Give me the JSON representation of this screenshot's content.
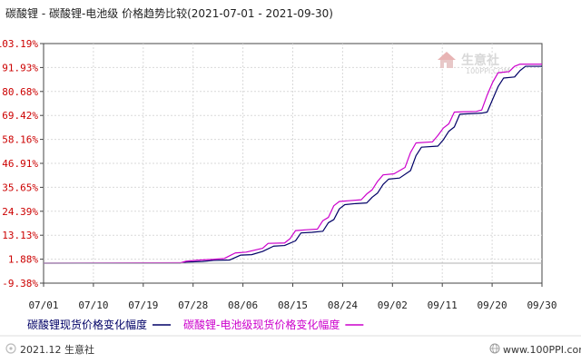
{
  "chart_data": {
    "type": "line",
    "title": "碳酸锂 - 碳酸锂-电池级 价格趋势比较(2021-07-01 - 2021-09-30)",
    "x_ticks": [
      "07/01",
      "07/10",
      "07/19",
      "07/28",
      "08/06",
      "08/15",
      "08/24",
      "09/02",
      "09/11",
      "09/20",
      "09/30"
    ],
    "y_ticks": [
      "103.19%",
      "91.93%",
      "80.68%",
      "69.42%",
      "58.16%",
      "46.91%",
      "35.65%",
      "24.39%",
      "13.13%",
      "1.88%",
      "-9.38%"
    ],
    "ylim": [
      -9.38,
      103.19
    ],
    "xlim": [
      "2021-07-01",
      "2021-09-30"
    ],
    "grid": true,
    "legend_position": "bottom",
    "series": [
      {
        "name": "碳酸锂现货价格变化幅度",
        "color": "#000066",
        "points": [
          [
            "2021-07-01",
            0
          ],
          [
            "2021-07-26",
            0
          ],
          [
            "2021-07-27",
            0.5
          ],
          [
            "2021-07-30",
            0.8
          ],
          [
            "2021-08-01",
            1.3
          ],
          [
            "2021-08-04",
            1.5
          ],
          [
            "2021-08-06",
            3.8
          ],
          [
            "2021-08-08",
            4.0
          ],
          [
            "2021-08-10",
            5.5
          ],
          [
            "2021-08-12",
            8.0
          ],
          [
            "2021-08-14",
            8.3
          ],
          [
            "2021-08-16",
            10.5
          ],
          [
            "2021-08-17",
            14.2
          ],
          [
            "2021-08-19",
            14.5
          ],
          [
            "2021-08-21",
            15.0
          ],
          [
            "2021-08-22",
            19.0
          ],
          [
            "2021-08-23",
            20.5
          ],
          [
            "2021-08-24",
            25.5
          ],
          [
            "2021-08-25",
            27.5
          ],
          [
            "2021-08-27",
            28.0
          ],
          [
            "2021-08-29",
            28.3
          ],
          [
            "2021-08-30",
            31.0
          ],
          [
            "2021-08-31",
            33.0
          ],
          [
            "2021-09-01",
            37.0
          ],
          [
            "2021-09-02",
            39.5
          ],
          [
            "2021-09-04",
            40.0
          ],
          [
            "2021-09-06",
            43.5
          ],
          [
            "2021-09-07",
            50.5
          ],
          [
            "2021-09-08",
            54.5
          ],
          [
            "2021-09-11",
            55.0
          ],
          [
            "2021-09-12",
            58.0
          ],
          [
            "2021-09-13",
            62.0
          ],
          [
            "2021-09-14",
            64.0
          ],
          [
            "2021-09-15",
            70.0
          ],
          [
            "2021-09-19",
            70.5
          ],
          [
            "2021-09-20",
            71.0
          ],
          [
            "2021-09-21",
            77.0
          ],
          [
            "2021-09-22",
            83.0
          ],
          [
            "2021-09-23",
            87.0
          ],
          [
            "2021-09-25",
            87.5
          ],
          [
            "2021-09-26",
            90.5
          ],
          [
            "2021-09-27",
            92.5
          ],
          [
            "2021-09-30",
            92.5
          ]
        ]
      },
      {
        "name": "碳酸锂-电池级现货价格变化幅度",
        "color": "#cc00cc",
        "points": [
          [
            "2021-07-01",
            0
          ],
          [
            "2021-07-26",
            0.2
          ],
          [
            "2021-07-27",
            0.9
          ],
          [
            "2021-07-29",
            1.4
          ],
          [
            "2021-08-01",
            1.8
          ],
          [
            "2021-08-03",
            2.2
          ],
          [
            "2021-08-05",
            4.8
          ],
          [
            "2021-08-07",
            5.2
          ],
          [
            "2021-08-10",
            7.0
          ],
          [
            "2021-08-11",
            9.3
          ],
          [
            "2021-08-14",
            9.5
          ],
          [
            "2021-08-15",
            11.5
          ],
          [
            "2021-08-16",
            15.3
          ],
          [
            "2021-08-18",
            15.7
          ],
          [
            "2021-08-20",
            16.0
          ],
          [
            "2021-08-21",
            20.0
          ],
          [
            "2021-08-22",
            21.5
          ],
          [
            "2021-08-23",
            27.0
          ],
          [
            "2021-08-24",
            29.0
          ],
          [
            "2021-08-26",
            29.4
          ],
          [
            "2021-08-28",
            29.8
          ],
          [
            "2021-08-29",
            32.5
          ],
          [
            "2021-08-30",
            34.5
          ],
          [
            "2021-08-31",
            38.5
          ],
          [
            "2021-09-01",
            41.5
          ],
          [
            "2021-09-03",
            42.0
          ],
          [
            "2021-09-05",
            45.0
          ],
          [
            "2021-09-06",
            52.0
          ],
          [
            "2021-09-07",
            56.5
          ],
          [
            "2021-09-10",
            57.0
          ],
          [
            "2021-09-11",
            60.0
          ],
          [
            "2021-09-12",
            63.5
          ],
          [
            "2021-09-13",
            65.5
          ],
          [
            "2021-09-14",
            71.0
          ],
          [
            "2021-09-18",
            71.3
          ],
          [
            "2021-09-19",
            72.0
          ],
          [
            "2021-09-20",
            79.0
          ],
          [
            "2021-09-21",
            85.0
          ],
          [
            "2021-09-22",
            89.5
          ],
          [
            "2021-09-24",
            90.0
          ],
          [
            "2021-09-25",
            92.5
          ],
          [
            "2021-09-26",
            93.5
          ],
          [
            "2021-09-30",
            93.5
          ]
        ]
      }
    ]
  },
  "watermark": {
    "chinese": "生意社",
    "url": "100PPI.COM"
  },
  "footer": {
    "left": "2021.12 生意社",
    "right": "www.100PPI.com"
  }
}
